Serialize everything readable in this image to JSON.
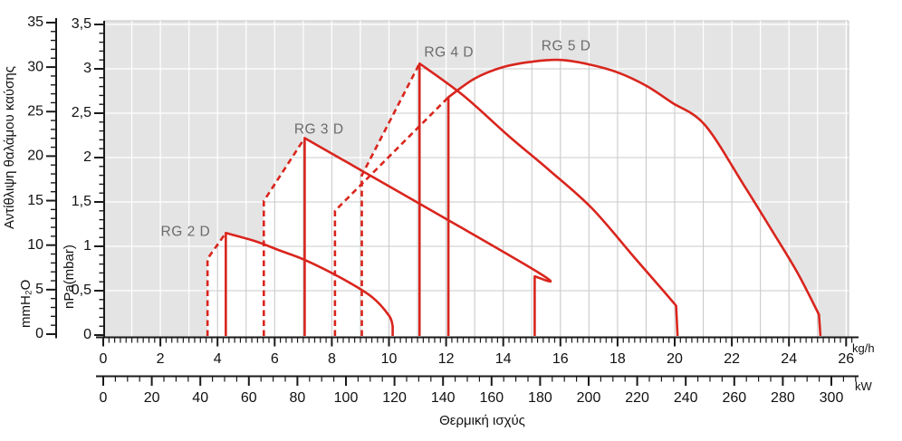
{
  "chart_data": {
    "type": "line",
    "title": "",
    "xlabel": "Θερμική ισχύς",
    "ylabel": "Αντίθλιψη θαλάμου καύσης",
    "x_axes": [
      {
        "unit": "kg/h",
        "min": 0,
        "max": 26,
        "major_step": 2,
        "minor_step": 0.2
      },
      {
        "unit": "kW",
        "min": 0,
        "max": 310,
        "major_step": 20,
        "minor_step": 5,
        "label_max": 300
      }
    ],
    "y_axes": [
      {
        "unit": "mmH₂O",
        "min": 0,
        "max": 35,
        "major_step": 5,
        "minor_step": 1
      },
      {
        "unit": "nPa(mbar)",
        "min": 0,
        "max": 3.5,
        "major_step": 0.5,
        "minor_step": 0.1
      }
    ],
    "grid": {
      "x_step_kgh": 1,
      "y_step_mbar": 0.5,
      "grid_on": true
    },
    "legend": "labels-on-curves",
    "colors": {
      "curve": "#d9251d",
      "plot_bg": "#e4e4e4",
      "grid_outside": "#ffffff",
      "grid_inside": "#cbcbcb",
      "series_label": "#6b6b6b",
      "axis": "#1a1a1a"
    },
    "series": [
      {
        "name": "RG 2 D",
        "label_at": [
          2.88,
          1.16
        ],
        "solid": [
          [
            4.29,
            0
          ],
          [
            4.29,
            1.15
          ],
          [
            5.3,
            1.06
          ],
          [
            6.2,
            0.95
          ],
          [
            7.1,
            0.84
          ],
          [
            8.4,
            0.63
          ],
          [
            9.4,
            0.43
          ],
          [
            10.0,
            0.22
          ],
          [
            10.13,
            0.1
          ],
          [
            10.13,
            0
          ]
        ],
        "dashed": [
          [
            3.65,
            0
          ],
          [
            3.65,
            0.86
          ],
          [
            4.29,
            1.15
          ]
        ]
      },
      {
        "name": "RG 3 D",
        "label_at": [
          7.55,
          2.31
        ],
        "solid": [
          [
            7.05,
            0
          ],
          [
            7.05,
            2.22
          ],
          [
            15.05,
            0.74
          ],
          [
            15.1,
            0.66
          ],
          [
            15.1,
            0
          ]
        ],
        "dashed": [
          [
            5.62,
            0
          ],
          [
            5.62,
            1.51
          ],
          [
            7.05,
            2.22
          ]
        ]
      },
      {
        "name": "RG 4 D",
        "label_at": [
          12.1,
          3.18
        ],
        "solid": [
          [
            11.07,
            0
          ],
          [
            11.07,
            3.06
          ],
          [
            12.6,
            2.7
          ],
          [
            14.2,
            2.24
          ],
          [
            15.6,
            1.86
          ],
          [
            17.1,
            1.43
          ],
          [
            18.6,
            0.87
          ],
          [
            19.6,
            0.5
          ],
          [
            20.05,
            0.33
          ],
          [
            20.1,
            0
          ]
        ],
        "dashed": [
          [
            9.05,
            0
          ],
          [
            9.05,
            1.8
          ],
          [
            11.07,
            3.06
          ]
        ]
      },
      {
        "name": "RG 5 D",
        "label_at": [
          16.2,
          3.25
        ],
        "solid": [
          [
            12.08,
            0
          ],
          [
            12.08,
            2.68
          ],
          [
            13.0,
            2.89
          ],
          [
            14.0,
            3.02
          ],
          [
            15.0,
            3.08
          ],
          [
            16.0,
            3.1
          ],
          [
            17.0,
            3.05
          ],
          [
            18.0,
            2.96
          ],
          [
            19.0,
            2.81
          ],
          [
            19.9,
            2.62
          ],
          [
            21.05,
            2.37
          ],
          [
            22.4,
            1.7
          ],
          [
            23.4,
            1.18
          ],
          [
            24.3,
            0.7
          ],
          [
            25.05,
            0.23
          ],
          [
            25.1,
            0
          ]
        ],
        "dashed": [
          [
            8.11,
            0
          ],
          [
            8.11,
            1.4
          ],
          [
            12.08,
            2.68
          ]
        ]
      }
    ]
  }
}
